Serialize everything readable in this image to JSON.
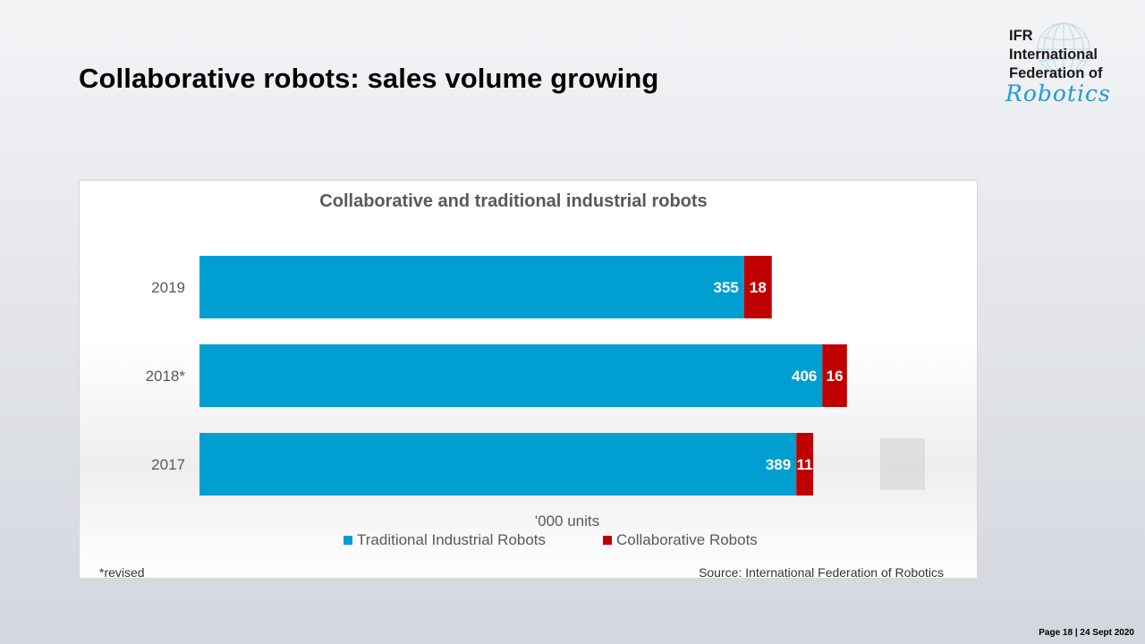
{
  "slide": {
    "title": "Collaborative robots: sales volume growing",
    "page_info": "Page 18 | 24 Sept 2020"
  },
  "logo": {
    "line1": "IFR",
    "line2": "International",
    "line3": "Federation of",
    "script": "Robotics"
  },
  "chart_data": {
    "type": "bar",
    "orientation": "horizontal",
    "stacked": true,
    "title": "Collaborative and traditional industrial robots",
    "categories": [
      "2019",
      "2018*",
      "2017"
    ],
    "series": [
      {
        "name": "Traditional Industrial Robots",
        "color": "#009fd1",
        "values": [
          355,
          406,
          389
        ]
      },
      {
        "name": "Collaborative Robots",
        "color": "#c00000",
        "values": [
          18,
          16,
          11
        ]
      }
    ],
    "xlabel": "'000 units",
    "xlim": [
      0,
      450
    ],
    "grid": false,
    "legend": "bottom",
    "footnote": "*revised",
    "source": "Source: International Federation of Robotics"
  }
}
